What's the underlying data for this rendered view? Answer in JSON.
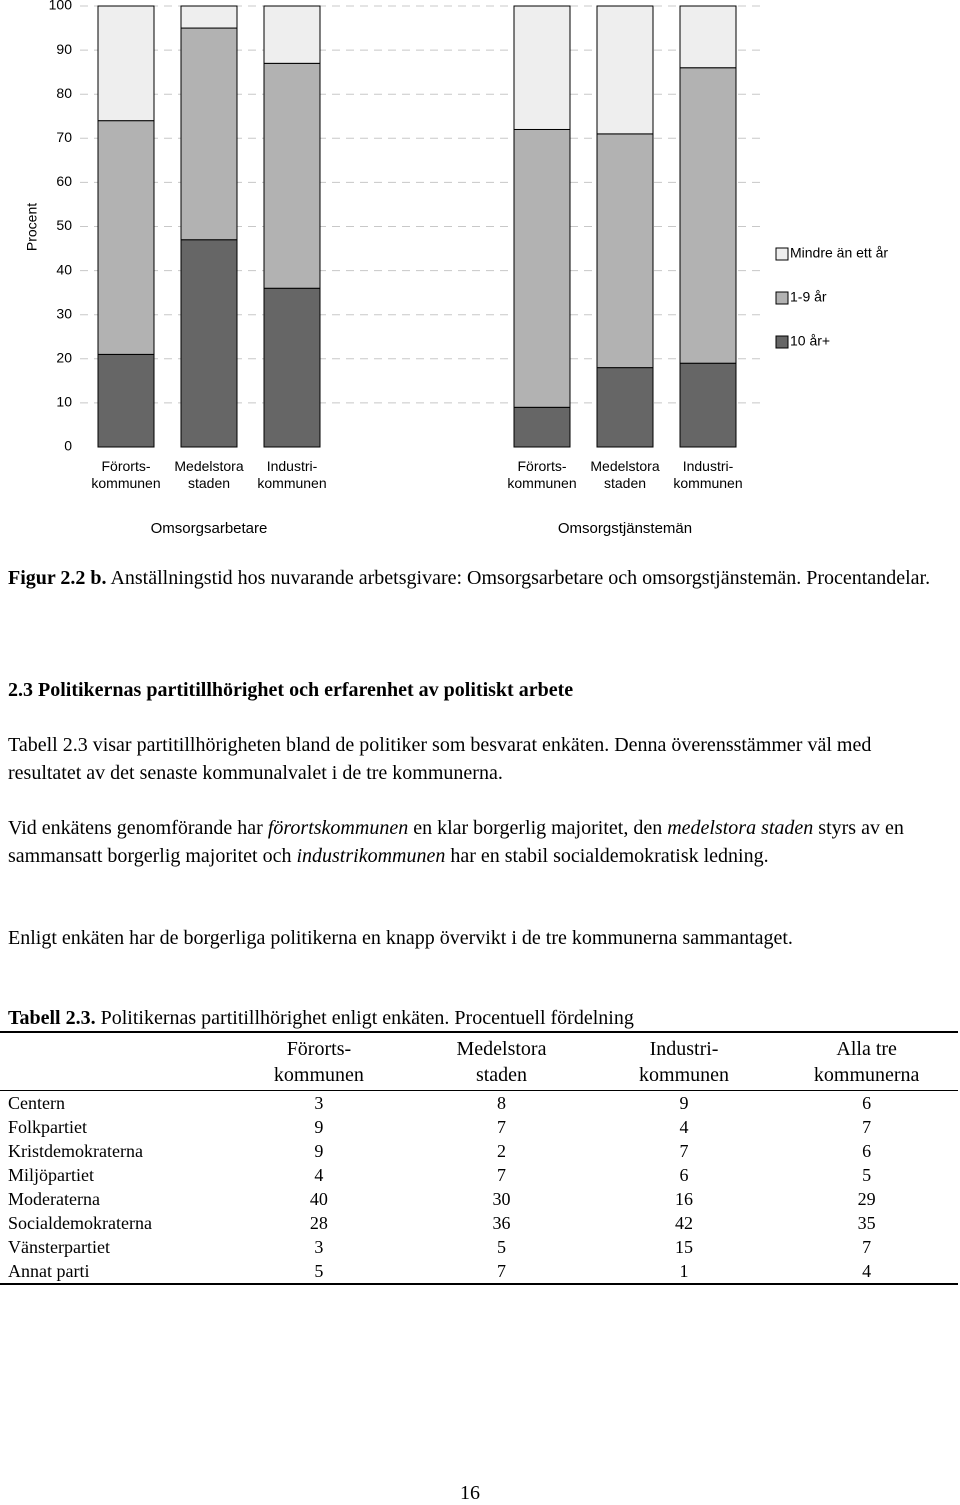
{
  "chart_data": {
    "type": "bar",
    "stacked": true,
    "y_label": "Procent",
    "categories": [
      "Förorts-\nkommunen",
      "Medelstora\nstaden",
      "Industri-\nkommunen",
      "Förorts-\nkommunen",
      "Medelstora\nstaden",
      "Industri-\nkommunen"
    ],
    "group_labels": [
      "Omsorgsarbetare",
      "Omsorgstjänstemän"
    ],
    "series": [
      {
        "name": "10 år+",
        "color": "#666666",
        "values": [
          21,
          47,
          36,
          9,
          18,
          19
        ]
      },
      {
        "name": "1-9 år",
        "color": "#b2b2b2",
        "values": [
          53,
          48,
          51,
          63,
          53,
          67
        ]
      },
      {
        "name": "Mindre än ett år",
        "color": "#eeeeee",
        "values": [
          26,
          5,
          13,
          28,
          29,
          14
        ]
      }
    ],
    "ylim": [
      0,
      100
    ],
    "yticks": [
      0,
      10,
      20,
      30,
      40,
      50,
      60,
      70,
      80,
      90,
      100
    ],
    "grid": true,
    "legend": "right"
  },
  "caption": {
    "label": "Figur 2.2 b.",
    "text": "Anställningstid hos nuvarande arbetsgivare: Omsorgsarbetare och omsorgstjänstemän. Procentandelar."
  },
  "heading": "2.3 Politikernas partitillhörighet och erfarenhet av politiskt arbete",
  "paragraphs": [
    [
      "Tabell 2.3 visar partitillhörigheten bland de politiker som besvarat enkäten. Denna överensstämmer väl med resultatet av det senaste kommunalvalet i de tre kommunerna."
    ],
    [
      "Vid enkätens genomförande har ",
      "förortskommunen",
      " en klar borgerlig majoritet, den ",
      "medelstora staden",
      " styrs av en sammansatt borgerlig majoritet och ",
      "industrikommunen",
      " har en stabil socialdemokratisk ledning."
    ],
    [
      "Enligt enkäten har de borgerliga politikerna en knapp övervikt i de tre kommunerna sammantaget."
    ]
  ],
  "table": {
    "label": "Tabell 2.3.",
    "caption": "Politikernas partitillhörighet enligt enkäten. Procentuell fördelning",
    "headers": [
      "Förorts-\nkommunen",
      "Medelstora\nstaden",
      "Industri-\nkommunen",
      "Alla tre\nkommunerna"
    ],
    "rows": [
      [
        "Centern",
        3,
        8,
        9,
        6
      ],
      [
        "Folkpartiet",
        9,
        7,
        4,
        7
      ],
      [
        "Kristdemokraterna",
        9,
        2,
        7,
        6
      ],
      [
        "Miljöpartiet",
        4,
        7,
        6,
        5
      ],
      [
        "Moderaterna",
        40,
        30,
        16,
        29
      ],
      [
        "Socialdemokraterna",
        28,
        36,
        42,
        35
      ],
      [
        "Vänsterpartiet",
        3,
        5,
        15,
        7
      ],
      [
        "Annat parti",
        5,
        7,
        1,
        4
      ]
    ]
  },
  "page_number": "16"
}
